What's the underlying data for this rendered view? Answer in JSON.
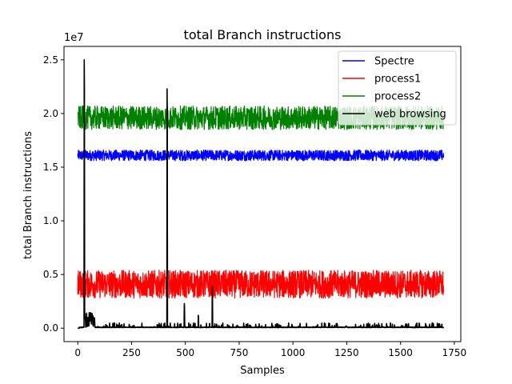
{
  "chart_data": {
    "type": "line",
    "title": "total Branch instructions",
    "xlabel": "Samples",
    "ylabel": "total Branch instructions",
    "y_offset_label": "1e7",
    "xlim": [
      -64,
      1780
    ],
    "ylim": [
      -1250000,
      26250000
    ],
    "x_ticks": [
      0,
      250,
      500,
      750,
      1000,
      1250,
      1500,
      1750
    ],
    "x_tick_labels": [
      "0",
      "250",
      "500",
      "750",
      "1000",
      "1250",
      "1500",
      "1750"
    ],
    "y_ticks": [
      0,
      5000000,
      10000000,
      15000000,
      20000000,
      25000000
    ],
    "y_tick_labels": [
      "0.0",
      "0.5",
      "1.0",
      "1.5",
      "2.0",
      "2.5"
    ],
    "grid": false,
    "legend_position": "top-right",
    "n_samples": 1701,
    "series": [
      {
        "name": "Spectre",
        "color": "#0000ff",
        "mean": 16100000,
        "amplitude": 500000,
        "min": 15200000,
        "max": 16900000
      },
      {
        "name": "process1",
        "color": "#ff0000",
        "mean": 4100000,
        "amplitude": 1300000,
        "min": 2700000,
        "max": 5700000
      },
      {
        "name": "process2",
        "color": "#008000",
        "mean": 19600000,
        "amplitude": 1100000,
        "min": 17500000,
        "max": 20900000
      },
      {
        "name": "web browsing",
        "color": "#000000",
        "mean": 50000,
        "amplitude": 150000,
        "min": 0,
        "max": 25000000,
        "spikes": [
          {
            "x": 30,
            "y": 25000000
          },
          {
            "x": 415,
            "y": 22300000
          },
          {
            "x": 495,
            "y": 2300000
          },
          {
            "x": 560,
            "y": 1200000
          },
          {
            "x": 625,
            "y": 3900000
          }
        ]
      }
    ]
  }
}
